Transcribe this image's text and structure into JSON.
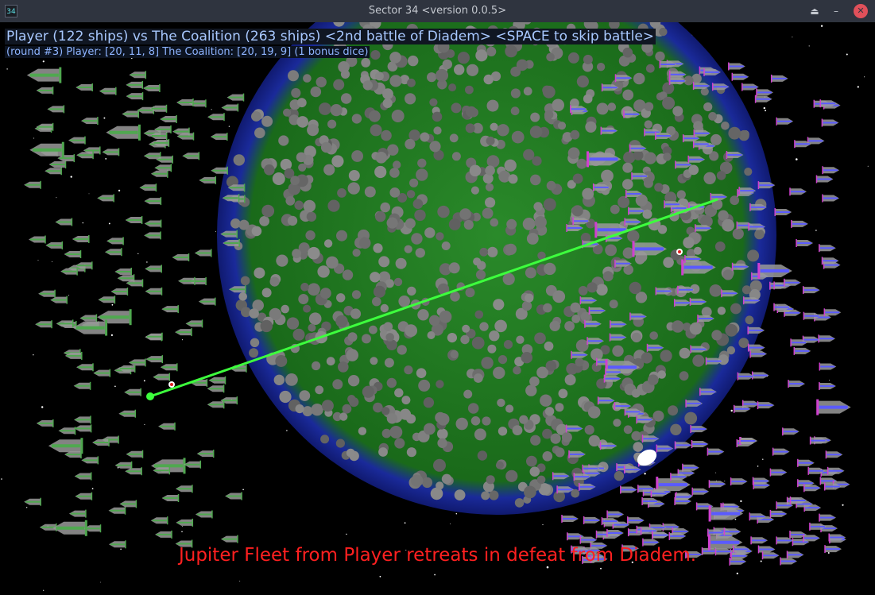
{
  "window": {
    "title": "Sector 34   <version 0.0.5>",
    "icon_label": "34",
    "controls": {
      "shade": "⏏",
      "minimize": "–",
      "close": "✕"
    }
  },
  "hud": {
    "matchup": "Player (122 ships) vs The Coalition (263 ships) <2nd battle of Diadem> <SPACE to skip battle>",
    "status": "(round #3)   Player: [20, 11, 8]    The Coalition: [20, 19, 9] (1 bonus dice)"
  },
  "banner": "Jupiter Fleet from Player retreats in defeat from Diadem.",
  "colors": {
    "player": "#4fa84f",
    "coalition": "#5a5aff",
    "laser": "#3dff3d",
    "planet_ocean": "#1a2a9a",
    "planet_land": "#1f7a1f",
    "banner": "#ff2020"
  },
  "fleets": {
    "player": {
      "name": "Player",
      "ships": 122
    },
    "coalition": {
      "name": "The Coalition",
      "ships": 263
    }
  }
}
